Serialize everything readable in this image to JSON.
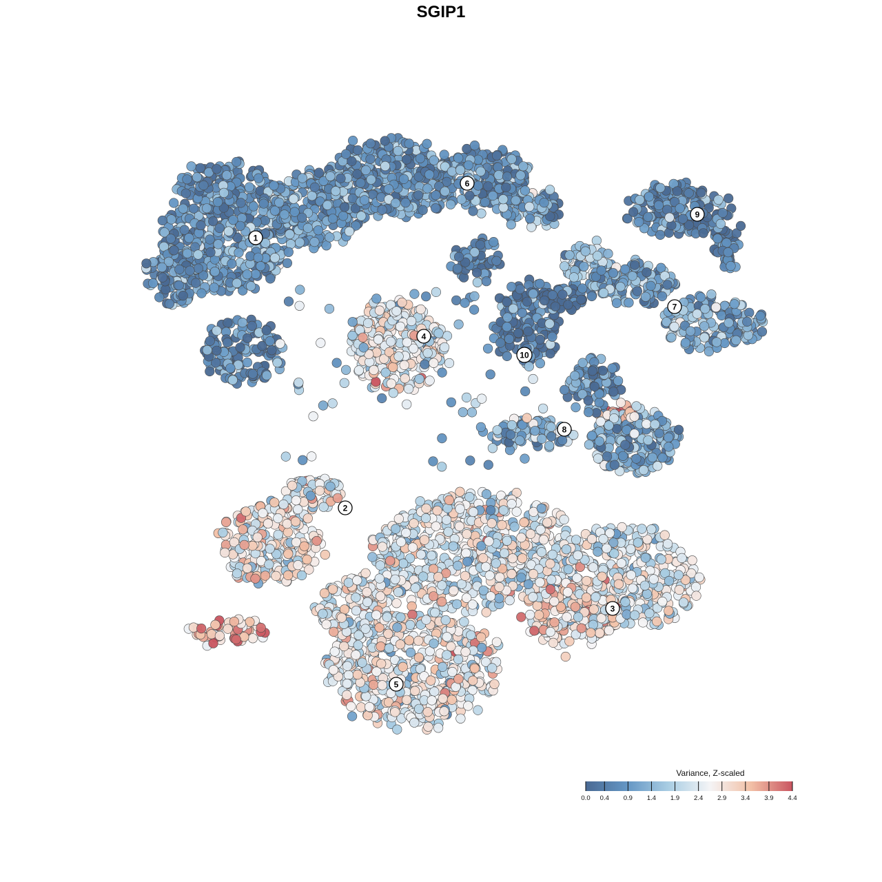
{
  "chart_data": {
    "type": "scatter",
    "title": "SGIP1",
    "color_scale": {
      "title": "Variance, Z-scaled",
      "min": 0.0,
      "max": 4.4,
      "ticks": [
        "0.0",
        "0.4",
        "0.9",
        "1.4",
        "1.9",
        "2.4",
        "2.9",
        "3.4",
        "3.9",
        "4.4"
      ],
      "colors": [
        "#4a6a94",
        "#6496c4",
        "#a9cde3",
        "#f4f4f6",
        "#f2c0a6",
        "#c95560"
      ]
    },
    "clusters": [
      {
        "label": "1",
        "mean_value": 0.9
      },
      {
        "label": "2",
        "mean_value": 2.8
      },
      {
        "label": "3",
        "mean_value": 2.4
      },
      {
        "label": "4",
        "mean_value": 2.5
      },
      {
        "label": "5",
        "mean_value": 2.6
      },
      {
        "label": "6",
        "mean_value": 0.8
      },
      {
        "label": "7",
        "mean_value": 1.0
      },
      {
        "label": "8",
        "mean_value": 1.1
      },
      {
        "label": "9",
        "mean_value": 0.6
      },
      {
        "label": "10",
        "mean_value": 0.2
      }
    ]
  }
}
